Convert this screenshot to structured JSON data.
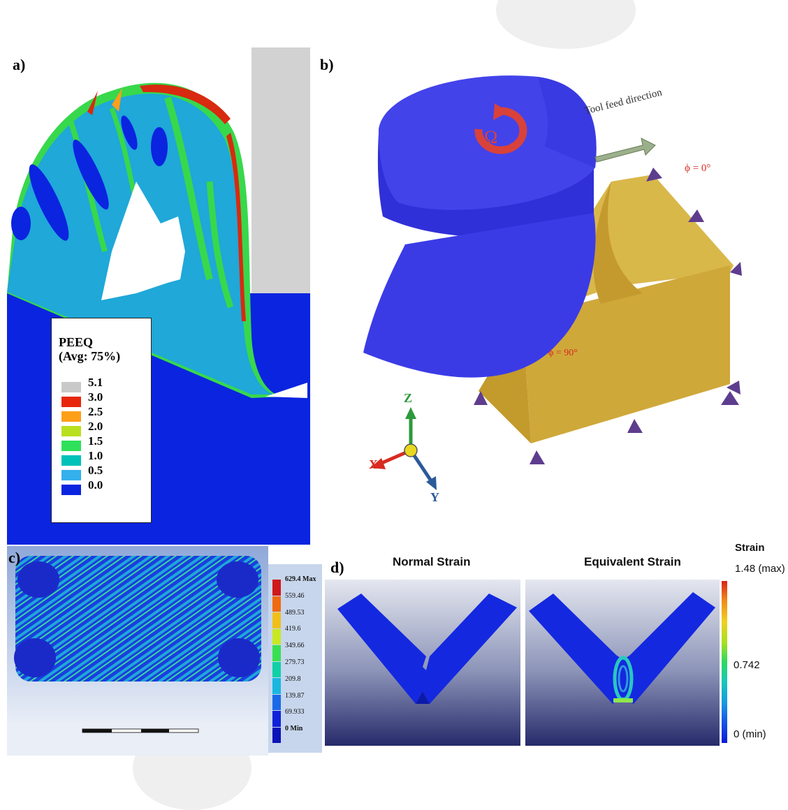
{
  "panels": {
    "a": {
      "label": "a)",
      "legend": {
        "title_line1": "PEEQ",
        "title_line2": "(Avg: 75%)",
        "levels": [
          "5.1",
          "3.0",
          "2.5",
          "2.0",
          "1.5",
          "1.0",
          "0.5",
          "0.0"
        ],
        "colors": [
          "#c9c9c9",
          "#e8260e",
          "#ff9f1a",
          "#b8e01f",
          "#2ee05a",
          "#00c2b8",
          "#34b0ec",
          "#0a24e0"
        ]
      }
    },
    "b": {
      "label": "b)",
      "feed_text": "Tool feed direction",
      "omega": "Ω",
      "phi0": "ϕ = 0°",
      "phi90": "ϕ = 90°",
      "axes": {
        "z": "Z",
        "x": "X",
        "y": "Y"
      }
    },
    "c": {
      "label": "c)",
      "legend": {
        "max_label": "629.4 Max",
        "values": [
          "559.46",
          "489.53",
          "419.6",
          "349.66",
          "279.73",
          "209.8",
          "139.87",
          "69.933"
        ],
        "min_label": "0 Min",
        "colors": [
          "#d01818",
          "#f06a10",
          "#f0c018",
          "#c8e820",
          "#38e050",
          "#10d0a8",
          "#18b8e0",
          "#1a6ae8",
          "#1022d8",
          "#0a14b8"
        ]
      }
    },
    "d": {
      "label": "d)",
      "title_left": "Normal Strain",
      "title_right": "Equivalent Strain",
      "legend": {
        "title": "Strain",
        "max": "1.48 (max)",
        "mid": "0.742",
        "min": "0 (min)"
      }
    }
  },
  "colors": {
    "tool_blue": "#3d3ee6",
    "workpiece_yellow": "#d9b84a",
    "contour_blue": "#0a24e0",
    "contour_cyan": "#1fa8d8",
    "contour_green": "#38d84c",
    "contour_red": "#d82a10",
    "gray": "#d2d2d2"
  }
}
